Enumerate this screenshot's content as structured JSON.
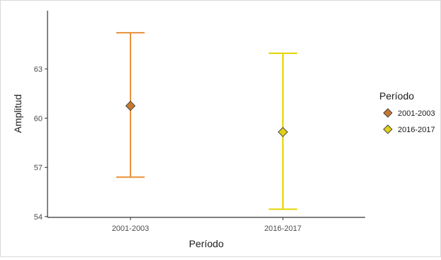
{
  "chart_data": {
    "type": "errorbar",
    "categories": [
      "2001-2003",
      "2016-2017"
    ],
    "series": [
      {
        "name": "2001-2003",
        "mean": 60.75,
        "lower": 56.4,
        "upper": 65.2,
        "color": "#e8913a",
        "marker_color": "#c8782e"
      },
      {
        "name": "2016-2017",
        "mean": 59.15,
        "lower": 54.45,
        "upper": 63.95,
        "color": "#e6d400",
        "marker_color": "#e1cf18"
      }
    ],
    "xlabel": "Período",
    "ylabel": "Amplitud",
    "yticks": [
      54,
      57,
      60,
      63
    ],
    "ylim": [
      53.95,
      66.55
    ],
    "legend_title": "Período",
    "legend_position": "right",
    "grid": false,
    "axis_color": "#333333"
  }
}
